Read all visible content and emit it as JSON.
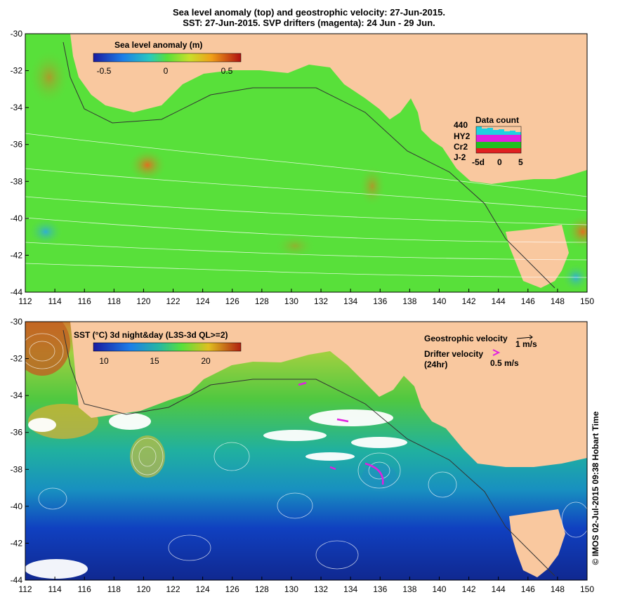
{
  "title_line1": "Sea level anomaly (top) and geostrophic velocity: 27-Jun-2015.",
  "title_line2": "SST: 27-Jun-2015. SVP drifters (magenta): 24 Jun - 29 Jun.",
  "top_panel": {
    "legend_title": "Sea level anomaly (m)",
    "colorbar_ticks": [
      "-0.5",
      "0",
      "0.5"
    ],
    "data_count": {
      "title": "Data count",
      "count": "440",
      "satellites": [
        {
          "name": "HY2",
          "color": "#e020e0"
        },
        {
          "name": "Cr2",
          "color": "#20c020"
        },
        {
          "name": "J-2",
          "color": "#e02020"
        }
      ],
      "axis_labels": [
        "-5d",
        "0",
        "5"
      ]
    }
  },
  "bottom_panel": {
    "legend_title": "SST (°C) 3d night&day (L3S-3d QL>=2)",
    "colorbar_ticks": [
      "10",
      "15",
      "20"
    ],
    "geo_velocity_label": "Geostrophic velocity",
    "geo_velocity_scale": "1 m/s",
    "drifter_label": "Drifter velocity",
    "drifter_sub": "(24hr)",
    "drifter_scale": "0.5 m/s"
  },
  "x_ticks": [
    "112",
    "114",
    "116",
    "118",
    "120",
    "122",
    "124",
    "126",
    "128",
    "130",
    "132",
    "134",
    "136",
    "138",
    "140",
    "142",
    "144",
    "146",
    "148",
    "150"
  ],
  "y_ticks": [
    "-30",
    "-32",
    "-34",
    "-36",
    "-38",
    "-40",
    "-42",
    "-44"
  ],
  "credit": "© IMOS 02-Jul-2015 09:38 Hobart Time",
  "colors": {
    "land": "#f9c89f",
    "sla_base": "#58e03a",
    "sst_warm": "#7fdd3a",
    "sst_mid": "#18a890",
    "sst_cold": "#1030b0"
  }
}
